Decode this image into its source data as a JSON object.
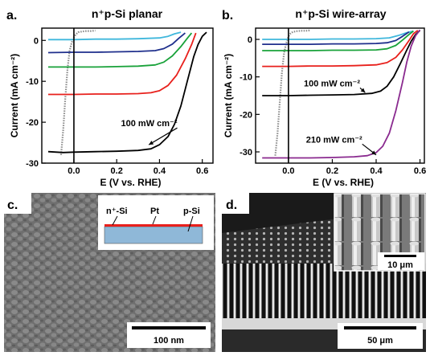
{
  "figure": {
    "panel_letters": [
      "a.",
      "b.",
      "c.",
      "d."
    ],
    "micrograph_c": {
      "letter": "c.",
      "inset_labels": {
        "n_si": "n⁺-Si",
        "pt": "Pt",
        "p_si": "p-Si"
      },
      "scale_bar": "100 nm"
    },
    "micrograph_d": {
      "letter": "d.",
      "inset_scale_bar": "10 μm",
      "scale_bar": "50 μm"
    }
  },
  "colors": {
    "black": "#000000",
    "red": "#e8201c",
    "green": "#19a23a",
    "navy": "#1f2f8c",
    "lightblue": "#3fb7dc",
    "gray": "#8a8a8a",
    "purple": "#8a2a8f",
    "substrate": "#8fb8d8",
    "pt_layer": "#e8201c"
  },
  "chart_data": [
    {
      "type": "line",
      "letter": "a.",
      "title": "n⁺p-Si planar",
      "xlabel": "E (V vs. RHE)",
      "ylabel": "Current (mA cm⁻²)",
      "xlim": [
        -0.15,
        0.65
      ],
      "ylim": [
        -30,
        3
      ],
      "xticks": [
        -0.0,
        0.2,
        0.4,
        0.6
      ],
      "xtick_labels": [
        "0.0",
        "0.2",
        "0.4",
        "0.6"
      ],
      "yticks": [
        0,
        -10,
        -20,
        -30
      ],
      "ytick_labels": [
        "0",
        "-10",
        "-20",
        "-30"
      ],
      "zero_line_x": 0.0,
      "annotation": {
        "text": "100 mW cm⁻²",
        "x": 0.22,
        "y": -21,
        "arrow_to": [
          0.35,
          -25.5
        ]
      },
      "series": [
        {
          "color": "gray",
          "x": [
            -0.06,
            -0.05,
            -0.04,
            -0.03,
            -0.02,
            -0.01,
            0.0,
            0.01,
            0.02,
            0.04,
            0.06,
            0.08,
            0.1
          ],
          "y": [
            -28,
            -22,
            -14,
            -7,
            -2.5,
            -0.5,
            0.8,
            1.5,
            2.0,
            2.2,
            2.3,
            2.3,
            2.4
          ]
        },
        {
          "color": "lightblue",
          "x": [
            -0.12,
            0.0,
            0.1,
            0.2,
            0.3,
            0.4,
            0.44,
            0.47,
            0.5
          ],
          "y": [
            0.2,
            0.2,
            0.3,
            0.3,
            0.4,
            0.6,
            1.0,
            1.6,
            2.0
          ]
        },
        {
          "color": "navy",
          "x": [
            -0.12,
            0.0,
            0.1,
            0.2,
            0.3,
            0.38,
            0.42,
            0.46,
            0.49,
            0.52
          ],
          "y": [
            -3.0,
            -2.9,
            -2.9,
            -2.8,
            -2.7,
            -2.5,
            -2.0,
            -0.9,
            0.5,
            1.8
          ]
        },
        {
          "color": "green",
          "x": [
            -0.12,
            0.0,
            0.1,
            0.2,
            0.3,
            0.38,
            0.42,
            0.46,
            0.5,
            0.53,
            0.55
          ],
          "y": [
            -6.5,
            -6.5,
            -6.5,
            -6.4,
            -6.3,
            -6.0,
            -5.3,
            -3.8,
            -1.5,
            0.5,
            1.8
          ]
        },
        {
          "color": "red",
          "x": [
            -0.12,
            0.0,
            0.1,
            0.2,
            0.3,
            0.36,
            0.4,
            0.44,
            0.48,
            0.52,
            0.55,
            0.57
          ],
          "y": [
            -13.2,
            -13.2,
            -13.1,
            -13.1,
            -13.0,
            -12.8,
            -12.3,
            -11.0,
            -8.5,
            -4.5,
            -1.0,
            1.8
          ]
        },
        {
          "color": "black",
          "x": [
            -0.12,
            -0.05,
            0.0,
            0.1,
            0.2,
            0.3,
            0.36,
            0.4,
            0.44,
            0.47,
            0.5,
            0.53,
            0.56,
            0.58,
            0.6,
            0.62
          ],
          "y": [
            -27.2,
            -27.4,
            -27.3,
            -27.2,
            -27.1,
            -26.9,
            -26.5,
            -25.5,
            -23.5,
            -20.5,
            -16.0,
            -10.0,
            -4.0,
            -1.0,
            1.0,
            2.0
          ]
        }
      ]
    },
    {
      "type": "line",
      "letter": "b.",
      "title": "n⁺p-Si wire-array",
      "xlabel": "E (V vs. RHE)",
      "ylabel": "Current (mA cm⁻²)",
      "xlim": [
        -0.15,
        0.62
      ],
      "ylim": [
        -33,
        3
      ],
      "xticks": [
        -0.0,
        0.2,
        0.4,
        0.6
      ],
      "xtick_labels": [
        "0.0",
        "0.2",
        "0.4",
        "0.6"
      ],
      "yticks": [
        0,
        -10,
        -20,
        -30
      ],
      "ytick_labels": [
        "0",
        "-10",
        "-20",
        "-30"
      ],
      "zero_line_x": 0.0,
      "annotations": [
        {
          "text": "100 mW cm⁻²",
          "x": 0.07,
          "y": -12.5,
          "arrow_to": [
            0.35,
            -14.2
          ]
        },
        {
          "text": "210 mW cm⁻²",
          "x": 0.08,
          "y": -27.5,
          "arrow_to": [
            0.4,
            -30.8
          ]
        }
      ],
      "series": [
        {
          "color": "gray",
          "x": [
            -0.06,
            -0.05,
            -0.04,
            -0.03,
            -0.02,
            -0.01,
            0.0,
            0.01,
            0.02,
            0.04,
            0.06,
            0.08,
            0.1
          ],
          "y": [
            -31,
            -25,
            -17,
            -9,
            -3.5,
            -1.0,
            0.8,
            1.6,
            2.0,
            2.2,
            2.3,
            2.3,
            2.4
          ]
        },
        {
          "color": "lightblue",
          "x": [
            -0.12,
            0.0,
            0.1,
            0.2,
            0.3,
            0.4,
            0.46,
            0.5,
            0.54,
            0.57
          ],
          "y": [
            0.0,
            0.0,
            0.0,
            0.1,
            0.1,
            0.2,
            0.4,
            1.0,
            1.8,
            2.2
          ]
        },
        {
          "color": "navy",
          "x": [
            -0.12,
            0.0,
            0.1,
            0.2,
            0.3,
            0.4,
            0.45,
            0.49,
            0.52,
            0.55
          ],
          "y": [
            -1.3,
            -1.3,
            -1.3,
            -1.2,
            -1.2,
            -1.1,
            -0.9,
            -0.3,
            0.8,
            2.0
          ]
        },
        {
          "color": "green",
          "x": [
            -0.12,
            0.0,
            0.1,
            0.2,
            0.3,
            0.4,
            0.45,
            0.49,
            0.52,
            0.55,
            0.57
          ],
          "y": [
            -3.0,
            -3.0,
            -3.0,
            -2.9,
            -2.9,
            -2.8,
            -2.5,
            -1.6,
            -0.2,
            1.3,
            2.2
          ]
        },
        {
          "color": "red",
          "x": [
            -0.12,
            0.0,
            0.1,
            0.2,
            0.3,
            0.4,
            0.45,
            0.49,
            0.52,
            0.55,
            0.57,
            0.59
          ],
          "y": [
            -7.2,
            -7.2,
            -7.1,
            -7.1,
            -7.0,
            -6.8,
            -6.2,
            -4.8,
            -2.8,
            -0.3,
            1.5,
            2.4
          ]
        },
        {
          "color": "black",
          "x": [
            -0.12,
            0.0,
            0.1,
            0.2,
            0.3,
            0.38,
            0.42,
            0.45,
            0.48,
            0.51,
            0.54,
            0.56,
            0.58,
            0.6
          ],
          "y": [
            -15.0,
            -15.0,
            -14.9,
            -14.8,
            -14.7,
            -14.4,
            -13.8,
            -12.5,
            -10.0,
            -6.5,
            -2.8,
            -0.5,
            1.3,
            2.4
          ]
        },
        {
          "color": "purple",
          "x": [
            -0.12,
            0.0,
            0.1,
            0.2,
            0.3,
            0.36,
            0.4,
            0.43,
            0.46,
            0.49,
            0.52,
            0.54,
            0.56,
            0.58,
            0.6
          ],
          "y": [
            -31.6,
            -31.6,
            -31.6,
            -31.5,
            -31.3,
            -31.0,
            -30.2,
            -28.5,
            -25.0,
            -19.0,
            -11.5,
            -6.0,
            -1.8,
            1.0,
            2.5
          ]
        }
      ]
    }
  ]
}
